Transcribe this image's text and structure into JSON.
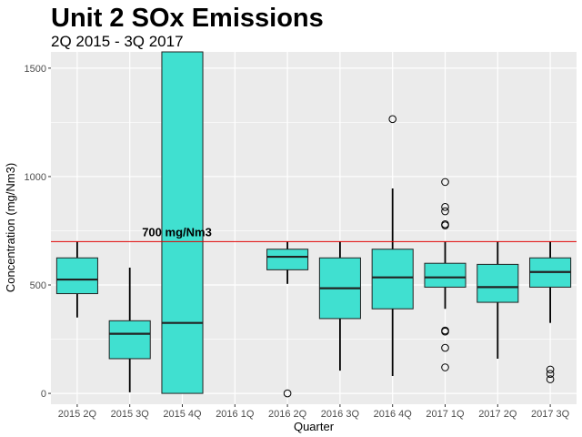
{
  "chart_data": {
    "type": "boxplot",
    "title": "Unit 2 SOx Emissions",
    "subtitle": "2Q 2015 - 3Q 2017",
    "xlabel": "Quarter",
    "ylabel": "Concentration (mg/Nm3)",
    "ylim": [
      -50,
      1575
    ],
    "yticks": [
      0,
      500,
      1000,
      1500
    ],
    "grid": true,
    "colors": {
      "box_fill": "#40e0d0",
      "ref_line": "#e00000",
      "panel": "#ebebeb",
      "grid": "#ffffff"
    },
    "reference_line": {
      "value": 700,
      "label": "700 mg/Nm3"
    },
    "categories": [
      "2015 2Q",
      "2015 3Q",
      "2015 4Q",
      "2016 1Q",
      "2016 2Q",
      "2016 3Q",
      "2016 4Q",
      "2017 1Q",
      "2017 2Q",
      "2017 3Q"
    ],
    "boxes": [
      {
        "category": "2015 2Q",
        "whisker_low": 350,
        "q1": 460,
        "median": 525,
        "q3": 625,
        "whisker_high": 700,
        "outliers": []
      },
      {
        "category": "2015 3Q",
        "whisker_low": 5,
        "q1": 160,
        "median": 275,
        "q3": 335,
        "whisker_high": 580,
        "outliers": []
      },
      {
        "category": "2015 4Q",
        "whisker_low": 0,
        "q1": 0,
        "median": 325,
        "q3": 1700,
        "whisker_high": 1700,
        "outliers": []
      },
      {
        "category": "2016 1Q",
        "empty": true
      },
      {
        "category": "2016 2Q",
        "whisker_low": 505,
        "q1": 570,
        "median": 630,
        "q3": 665,
        "whisker_high": 700,
        "outliers": [
          0
        ]
      },
      {
        "category": "2016 3Q",
        "whisker_low": 105,
        "q1": 345,
        "median": 485,
        "q3": 625,
        "whisker_high": 700,
        "outliers": []
      },
      {
        "category": "2016 4Q",
        "whisker_low": 80,
        "q1": 390,
        "median": 535,
        "q3": 665,
        "whisker_high": 945,
        "outliers": [
          1265
        ]
      },
      {
        "category": "2017 1Q",
        "whisker_low": 390,
        "q1": 490,
        "median": 535,
        "q3": 600,
        "whisker_high": 700,
        "outliers": [
          975,
          860,
          840,
          780,
          775,
          290,
          285,
          210,
          120
        ]
      },
      {
        "category": "2017 2Q",
        "whisker_low": 160,
        "q1": 420,
        "median": 490,
        "q3": 595,
        "whisker_high": 700,
        "outliers": []
      },
      {
        "category": "2017 3Q",
        "whisker_low": 325,
        "q1": 490,
        "median": 560,
        "q3": 625,
        "whisker_high": 700,
        "outliers": [
          110,
          90,
          65
        ]
      }
    ]
  }
}
